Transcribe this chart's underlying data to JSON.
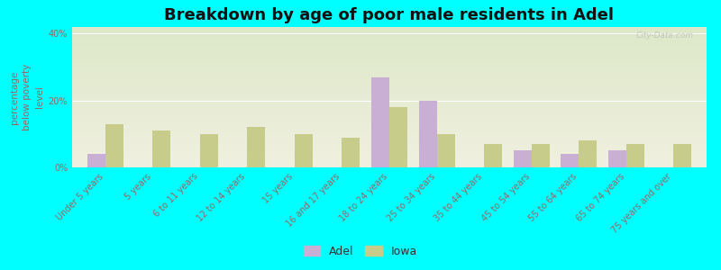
{
  "title": "Breakdown by age of poor male residents in Adel",
  "ylabel": "percentage\nbelow poverty\nlevel",
  "categories": [
    "Under 5 years",
    "5 years",
    "6 to 11 years",
    "12 to 14 years",
    "15 years",
    "16 and 17 years",
    "18 to 24 years",
    "25 to 34 years",
    "35 to 44 years",
    "45 to 54 years",
    "55 to 64 years",
    "65 to 74 years",
    "75 years and over"
  ],
  "adel_values": [
    4,
    0,
    0,
    0,
    0,
    0,
    27,
    20,
    0,
    5,
    4,
    5,
    0
  ],
  "iowa_values": [
    13,
    11,
    10,
    12,
    10,
    9,
    18,
    10,
    7,
    7,
    8,
    7,
    7
  ],
  "adel_color": "#c9afd4",
  "iowa_color": "#c8cc8a",
  "bg_color": "#00ffff",
  "plot_bg_top": "#dde8c8",
  "plot_bg_bottom": "#f0f0e0",
  "ylim": [
    0,
    42
  ],
  "yticks": [
    0,
    20,
    40
  ],
  "ytick_labels": [
    "0%",
    "20%",
    "40%"
  ],
  "bar_width": 0.38,
  "title_fontsize": 13,
  "axis_label_fontsize": 7.5,
  "tick_fontsize": 7,
  "legend_fontsize": 9,
  "watermark": "City-Data.com"
}
